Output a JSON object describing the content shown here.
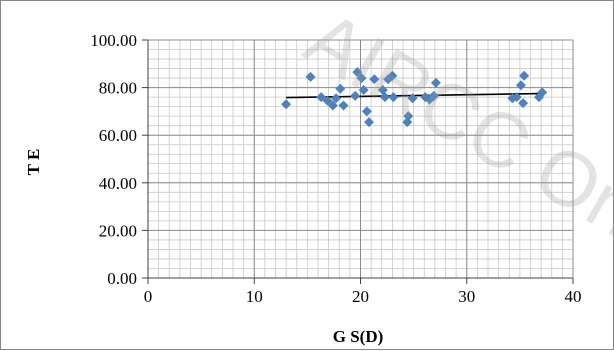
{
  "chart_data": {
    "type": "scatter",
    "title": "",
    "xlabel": "G S(D)",
    "ylabel": "T E",
    "xlim": [
      0,
      40
    ],
    "ylim": [
      0,
      100
    ],
    "x_ticks": [
      "0",
      "10",
      "20",
      "30",
      "40"
    ],
    "y_ticks": [
      "0.00",
      "20.00",
      "40.00",
      "60.00",
      "80.00",
      "100.00"
    ],
    "grid": "major and minor",
    "legend": "none",
    "colors": {
      "marker": "#4f81bd",
      "trendline": "#000000",
      "gridline": "#c8c8c8",
      "frame": "#868686"
    },
    "watermark": "AIRCC Online",
    "trendline": {
      "type": "linear",
      "x": [
        13,
        37
      ],
      "y": [
        75.8,
        77.5
      ]
    },
    "series": [
      {
        "points": [
          [
            13.0,
            73.0
          ],
          [
            15.3,
            84.5
          ],
          [
            16.3,
            76.0
          ],
          [
            16.9,
            74.5
          ],
          [
            17.4,
            72.5
          ],
          [
            17.7,
            75.5
          ],
          [
            18.1,
            79.5
          ],
          [
            18.4,
            72.5
          ],
          [
            19.5,
            76.5
          ],
          [
            19.7,
            86.5
          ],
          [
            20.1,
            84.0
          ],
          [
            20.3,
            79.0
          ],
          [
            20.6,
            70.0
          ],
          [
            20.8,
            65.5
          ],
          [
            21.3,
            83.5
          ],
          [
            22.1,
            79.0
          ],
          [
            22.3,
            76.0
          ],
          [
            22.6,
            83.5
          ],
          [
            23.0,
            85.0
          ],
          [
            23.1,
            76.0
          ],
          [
            24.4,
            65.5
          ],
          [
            24.5,
            68.0
          ],
          [
            24.9,
            75.5
          ],
          [
            26.1,
            76.0
          ],
          [
            26.5,
            75.0
          ],
          [
            26.9,
            76.5
          ],
          [
            27.1,
            82.0
          ],
          [
            34.3,
            75.5
          ],
          [
            34.7,
            76.0
          ],
          [
            35.1,
            81.0
          ],
          [
            35.3,
            73.5
          ],
          [
            35.4,
            85.0
          ],
          [
            36.8,
            76.0
          ],
          [
            37.1,
            78.0
          ]
        ]
      }
    ]
  }
}
